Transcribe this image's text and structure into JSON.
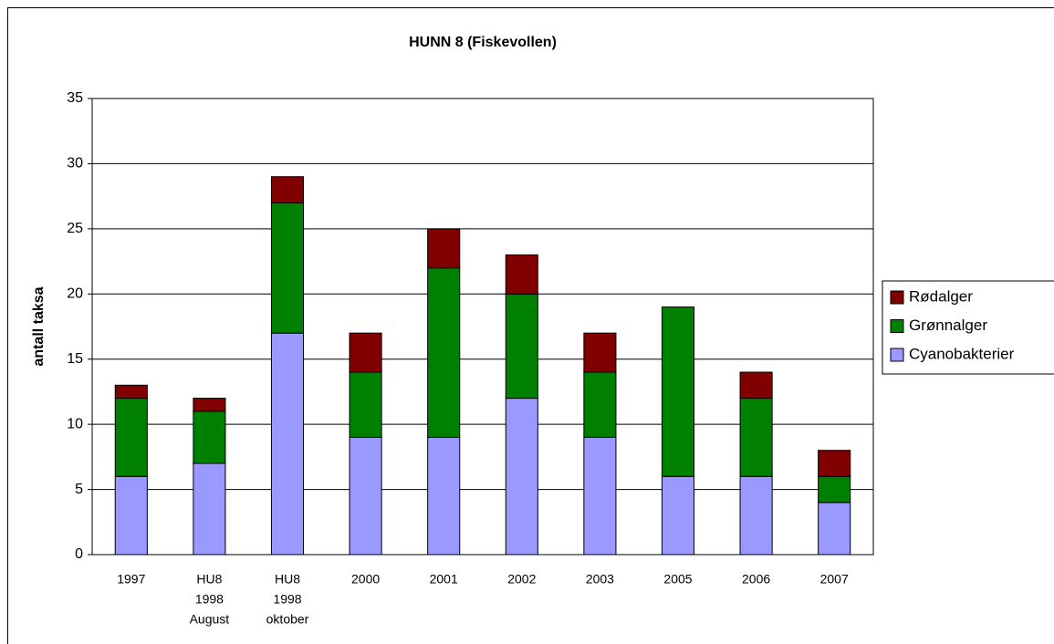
{
  "chart_data": {
    "type": "stacked-bar",
    "title": "HUNN 8 (Fiskevollen)",
    "y_label": "antall taksa",
    "categories": [
      [
        "1997"
      ],
      [
        "HU8",
        "1998",
        "August"
      ],
      [
        "HU8",
        "1998",
        "oktober"
      ],
      [
        "2000"
      ],
      [
        "2001"
      ],
      [
        "2002"
      ],
      [
        "2003"
      ],
      [
        "2005"
      ],
      [
        "2006"
      ],
      [
        "2007"
      ]
    ],
    "series": [
      {
        "name": "Cyanobakterier",
        "color": "#9999ff",
        "values": [
          6,
          7,
          17,
          9,
          9,
          12,
          9,
          6,
          6,
          4
        ]
      },
      {
        "name": "Grønnalger",
        "color": "#008000",
        "values": [
          6,
          4,
          10,
          5,
          13,
          8,
          5,
          13,
          6,
          2
        ]
      },
      {
        "name": "Rødalger",
        "color": "#800000",
        "values": [
          1,
          1,
          2,
          3,
          3,
          3,
          3,
          0,
          2,
          2
        ]
      }
    ],
    "ylim": [
      0,
      35
    ],
    "yticks": [
      0,
      5,
      10,
      15,
      20,
      25,
      30,
      35
    ],
    "grid": true,
    "legend": "right"
  }
}
